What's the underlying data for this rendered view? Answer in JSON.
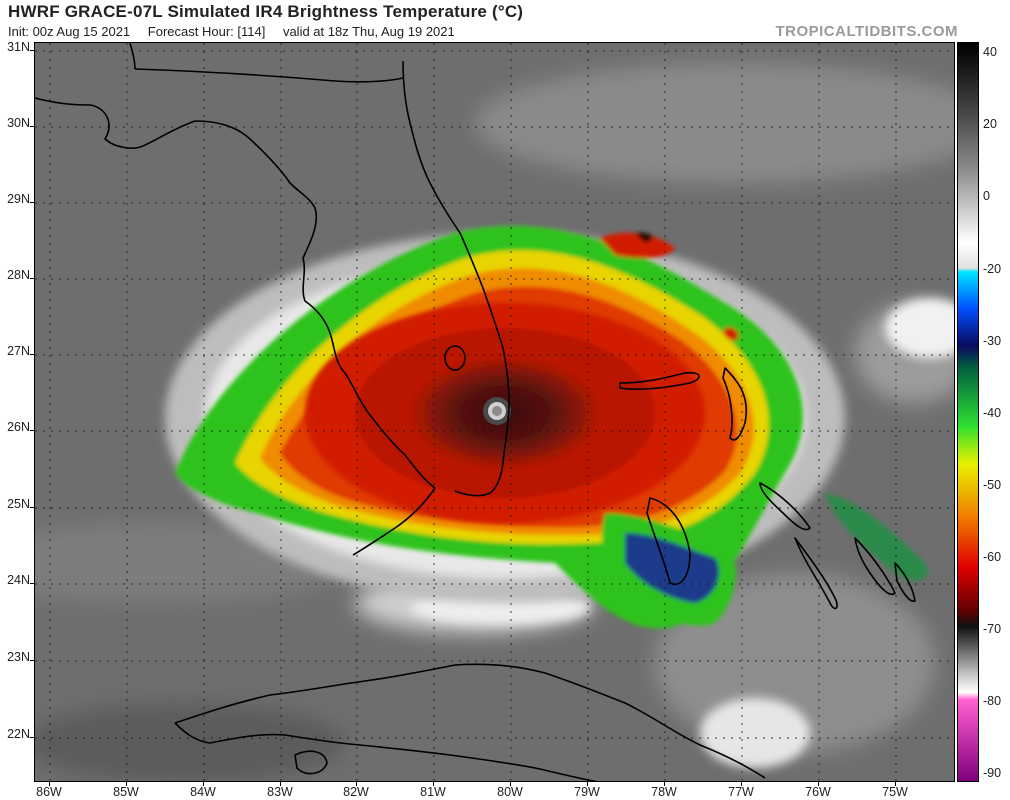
{
  "header": {
    "title": "HWRF GRACE-07L Simulated IR4 Brightness Temperature (°C)",
    "init": "Init: 00z Aug 15 2021",
    "forecast_hour": "Forecast Hour: [114]",
    "valid": "valid at 18z Thu, Aug 19 2021",
    "credit": "TROPICALTIDBITS.COM"
  },
  "map": {
    "lat_labels": [
      "31N",
      "30N",
      "29N",
      "28N",
      "27N",
      "26N",
      "25N",
      "24N",
      "23N",
      "22N"
    ],
    "lon_labels": [
      "86W",
      "85W",
      "84W",
      "83W",
      "82W",
      "81W",
      "80W",
      "79W",
      "78W",
      "77W",
      "76W",
      "75W"
    ],
    "storm": "GRACE-07L",
    "eye_location": "26.2N 80.1W"
  },
  "colorbar": {
    "labels": [
      "40",
      "20",
      "0",
      "-20",
      "-30",
      "-40",
      "-50",
      "-60",
      "-70",
      "-80",
      "-90"
    ],
    "units": "°C"
  },
  "colors": {
    "background_cloud": "#6b6b6b",
    "cold_top_red": "#d21a00",
    "eyewall_dark": "#2a0a06",
    "green_band": "#22c000",
    "coastline": "#000000"
  }
}
